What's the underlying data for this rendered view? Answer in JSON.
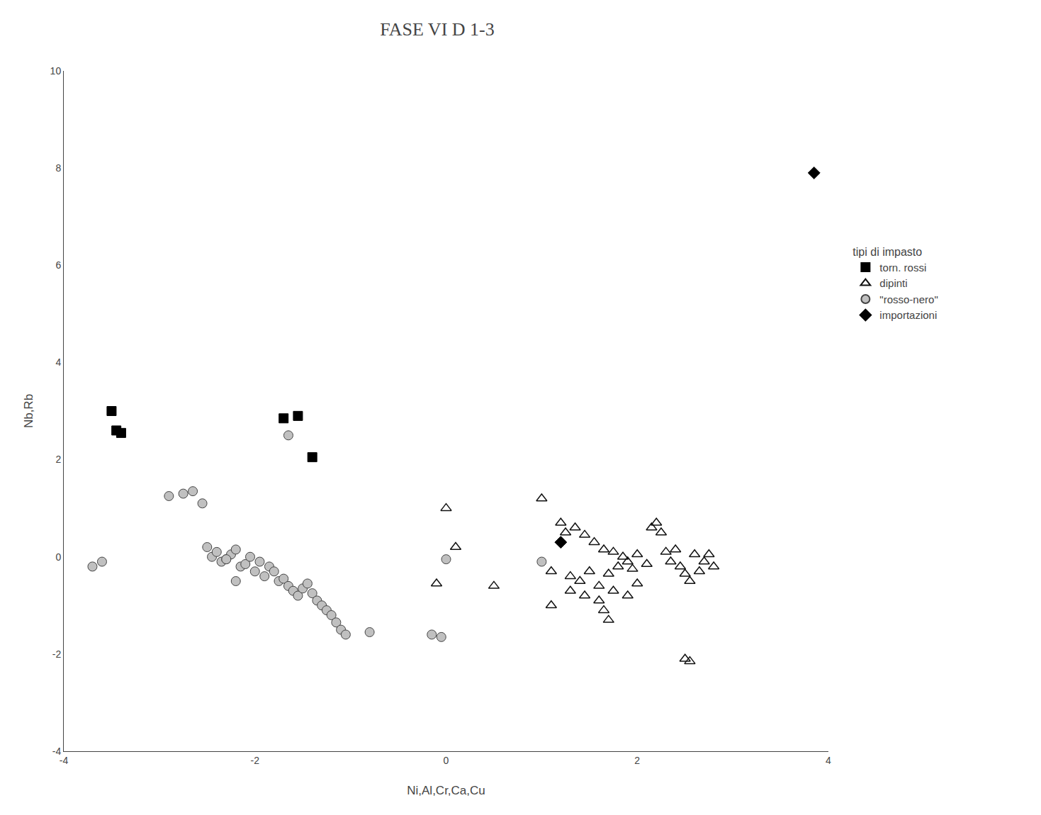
{
  "chart_data": {
    "type": "scatter",
    "title": "FASE VI D 1-3",
    "x_label": "Ni,Al,Cr,Ca,Cu",
    "y_label": "Nb,Rb",
    "xlim": [
      -4,
      4
    ],
    "ylim": [
      -4,
      10
    ],
    "xticks": [
      -4,
      -2,
      0,
      2,
      4
    ],
    "yticks": [
      -4,
      -2,
      0,
      2,
      4,
      6,
      8,
      10
    ],
    "grid": false,
    "legend": "right",
    "legend_title": "tipi di impasto",
    "series": [
      {
        "name": "torn. rossi",
        "color": "#000000",
        "marker": "square",
        "x": [
          -3.5,
          -3.45,
          -3.4,
          -1.7,
          -1.55,
          -1.4
        ],
        "values": [
          3.0,
          2.6,
          2.55,
          2.85,
          2.9,
          2.05
        ]
      },
      {
        "name": "dipinti",
        "color": "#111111",
        "marker": "triangle-up-open",
        "x": [
          0.0,
          0.1,
          -0.1,
          0.5,
          1.0,
          1.1,
          1.2,
          1.25,
          1.3,
          1.35,
          1.4,
          1.45,
          1.5,
          1.55,
          1.6,
          1.65,
          1.7,
          1.75,
          1.8,
          1.85,
          1.9,
          1.95,
          2.0,
          2.1,
          2.15,
          2.2,
          2.25,
          2.3,
          2.35,
          2.4,
          2.45,
          2.5,
          2.55,
          2.6,
          2.65,
          2.7,
          2.75,
          2.8,
          1.1,
          1.3,
          1.45,
          1.6,
          1.65,
          1.7,
          1.75,
          1.9,
          2.0,
          2.5,
          2.55
        ],
        "values": [
          1.0,
          0.2,
          -0.55,
          -0.6,
          1.2,
          -0.3,
          0.7,
          0.5,
          -0.4,
          0.6,
          -0.5,
          0.45,
          -0.3,
          0.3,
          -0.6,
          0.15,
          -0.35,
          0.1,
          -0.2,
          0.0,
          -0.1,
          -0.25,
          0.05,
          -0.15,
          0.6,
          0.7,
          0.5,
          0.1,
          -0.1,
          0.15,
          -0.2,
          -0.35,
          -0.5,
          0.05,
          -0.3,
          -0.1,
          0.05,
          -0.2,
          -1.0,
          -0.7,
          -0.8,
          -0.9,
          -1.1,
          -1.3,
          -0.7,
          -0.8,
          -0.55,
          -2.1,
          -2.15
        ]
      },
      {
        "name": "\"rosso-nero\"",
        "color": "#c0c0c0",
        "marker": "circle",
        "x": [
          -3.7,
          -3.6,
          -2.9,
          -2.75,
          -2.65,
          -2.55,
          -2.5,
          -2.45,
          -2.4,
          -2.35,
          -2.3,
          -2.25,
          -2.2,
          -2.15,
          -2.1,
          -2.05,
          -2.0,
          -1.95,
          -1.9,
          -1.85,
          -1.8,
          -1.75,
          -1.7,
          -1.65,
          -1.6,
          -1.55,
          -1.5,
          -1.45,
          -1.4,
          -1.35,
          -1.3,
          -1.25,
          -1.2,
          -1.15,
          -1.1,
          -1.05,
          -0.8,
          -0.15,
          -0.05,
          0.0,
          1.0,
          -1.65,
          -2.3,
          -2.2
        ],
        "values": [
          -0.2,
          -0.1,
          1.25,
          1.3,
          1.35,
          1.1,
          0.2,
          0.0,
          0.1,
          -0.1,
          -0.05,
          0.05,
          0.15,
          -0.2,
          -0.15,
          0.0,
          -0.3,
          -0.1,
          -0.4,
          -0.2,
          -0.3,
          -0.5,
          -0.45,
          -0.6,
          -0.7,
          -0.8,
          -0.65,
          -0.55,
          -0.75,
          -0.9,
          -1.0,
          -1.1,
          -1.2,
          -1.35,
          -1.5,
          -1.6,
          -1.55,
          -1.6,
          -1.65,
          -0.05,
          -0.1,
          2.5,
          -0.05,
          -0.5
        ]
      },
      {
        "name": "importazioni",
        "color": "#000000",
        "marker": "diamond",
        "x": [
          1.2,
          3.85
        ],
        "values": [
          0.3,
          7.9
        ]
      }
    ]
  }
}
